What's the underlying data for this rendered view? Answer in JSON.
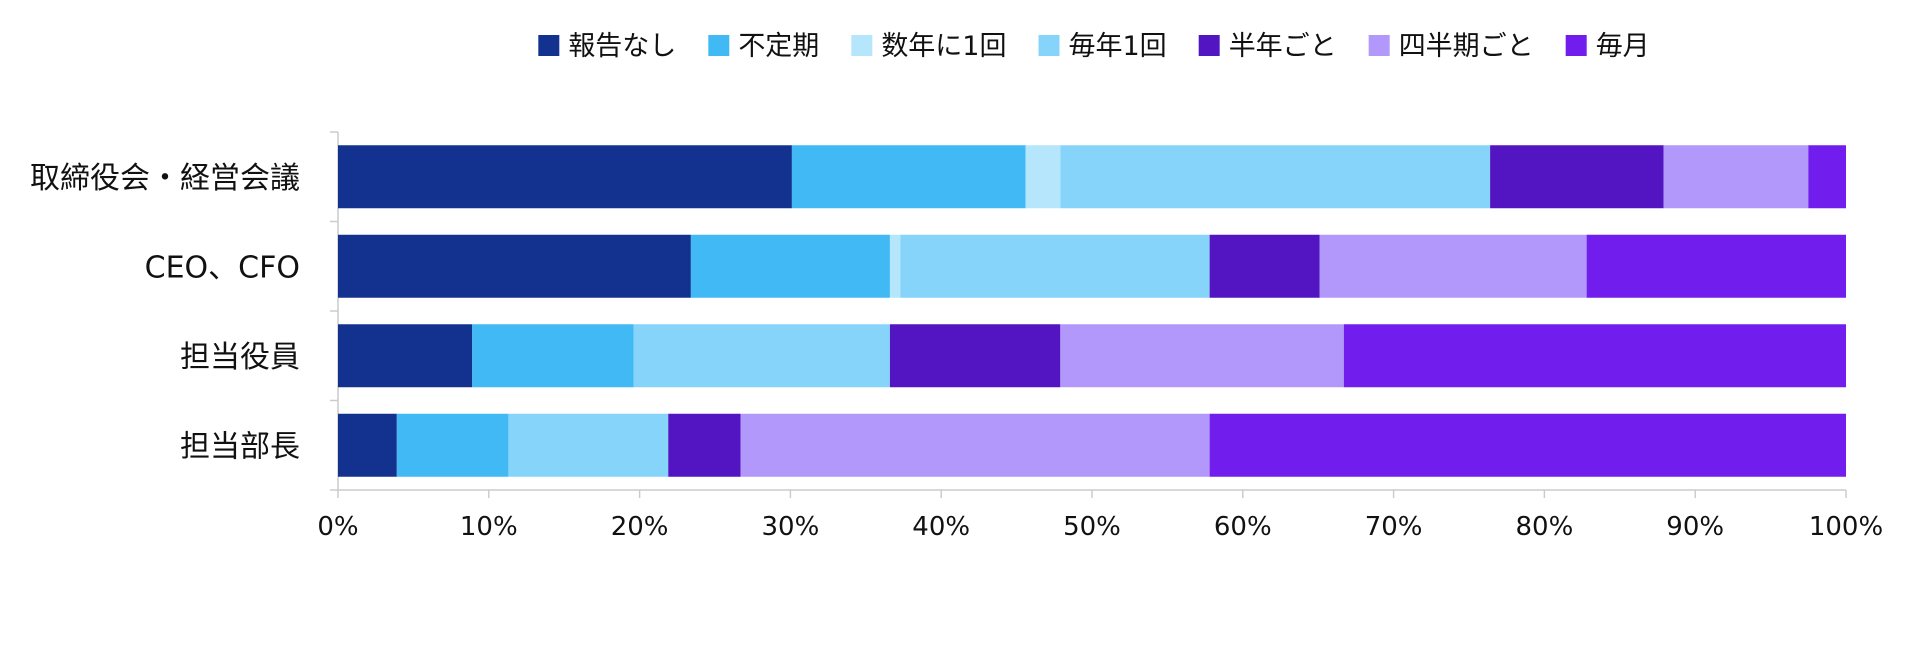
{
  "chart_data": {
    "type": "bar",
    "orientation": "horizontal",
    "stacked": "percent",
    "categories": [
      "取締役会・経営会議",
      "CEO、CFO",
      "担当役員",
      "担当部長"
    ],
    "series": [
      {
        "name": "報告なし",
        "color": "#13328F",
        "values": [
          30.1,
          23.4,
          8.9,
          3.9
        ]
      },
      {
        "name": "不定期",
        "color": "#41B9F4",
        "values": [
          15.5,
          13.2,
          10.7,
          7.4
        ]
      },
      {
        "name": "数年に1回",
        "color": "#B6E6FB",
        "values": [
          2.3,
          0.7,
          0.0,
          0.0
        ]
      },
      {
        "name": "毎年1回",
        "color": "#87D4FB",
        "values": [
          28.5,
          20.5,
          17.0,
          10.6
        ]
      },
      {
        "name": "半年ごと",
        "color": "#5215C1",
        "values": [
          11.5,
          7.3,
          11.3,
          4.8
        ]
      },
      {
        "name": "四半期ごと",
        "color": "#B398FC",
        "values": [
          9.6,
          17.7,
          18.8,
          31.1
        ]
      },
      {
        "name": "毎月",
        "color": "#711DEE",
        "values": [
          2.5,
          17.2,
          33.3,
          42.2
        ]
      }
    ],
    "xticks": [
      "0%",
      "10%",
      "20%",
      "30%",
      "40%",
      "50%",
      "60%",
      "70%",
      "80%",
      "90%",
      "100%"
    ],
    "xlim": [
      0,
      100
    ],
    "legend_position": "top",
    "grid": false,
    "title": "",
    "xlabel": "",
    "ylabel": ""
  }
}
